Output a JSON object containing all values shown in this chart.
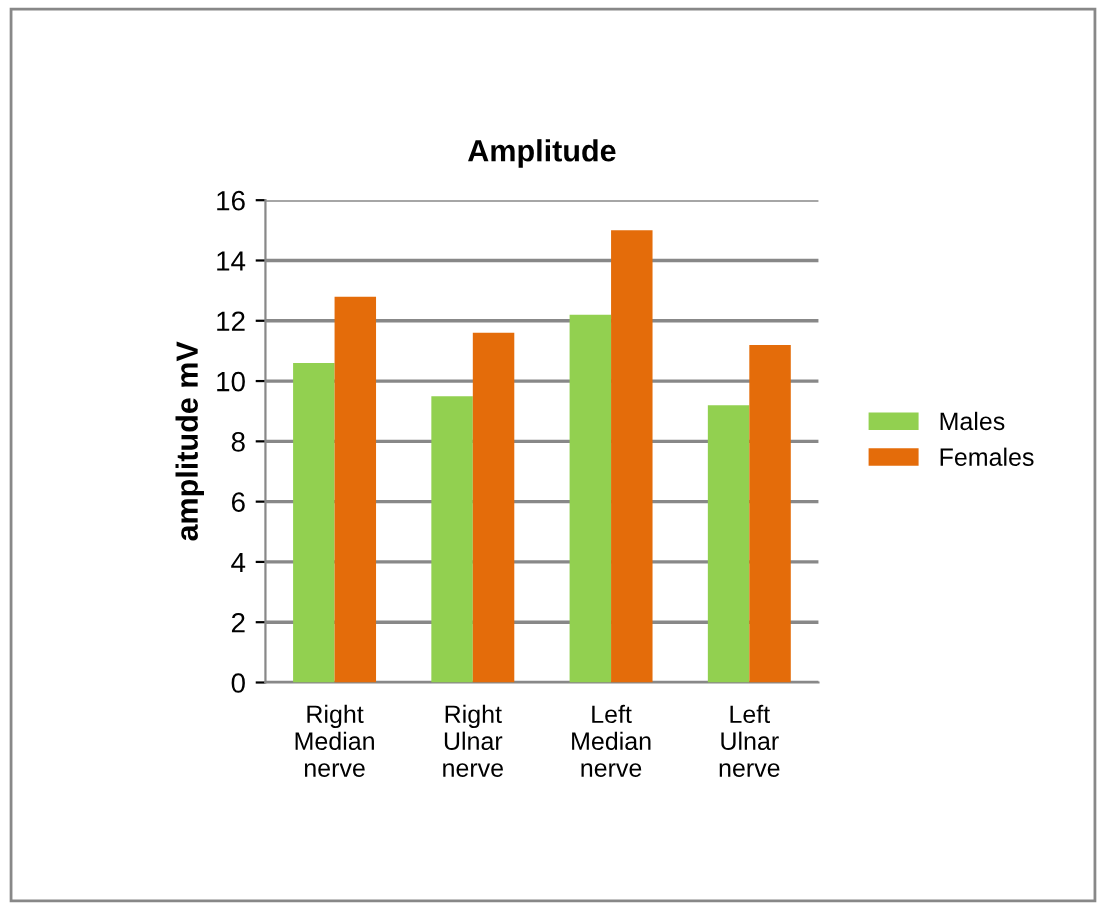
{
  "chart_data": {
    "type": "bar",
    "title": "Amplitude",
    "ylabel": "amplitude mV",
    "categories": [
      "Right\nMedian\nnerve",
      "Right\nUlnar\nnerve",
      "Left\nMedian\nnerve",
      "Left\nUlnar\nnerve"
    ],
    "series": [
      {
        "name": "Males",
        "color": "#92d050",
        "values": [
          10.6,
          9.5,
          12.2,
          9.2
        ]
      },
      {
        "name": "Females",
        "color": "#e46c0a",
        "values": [
          12.8,
          11.6,
          15.0,
          11.2
        ]
      }
    ],
    "ylim": [
      0,
      16
    ],
    "yticks": [
      0,
      2,
      4,
      6,
      8,
      10,
      12,
      14,
      16
    ],
    "grid": "y",
    "legend": "right"
  }
}
